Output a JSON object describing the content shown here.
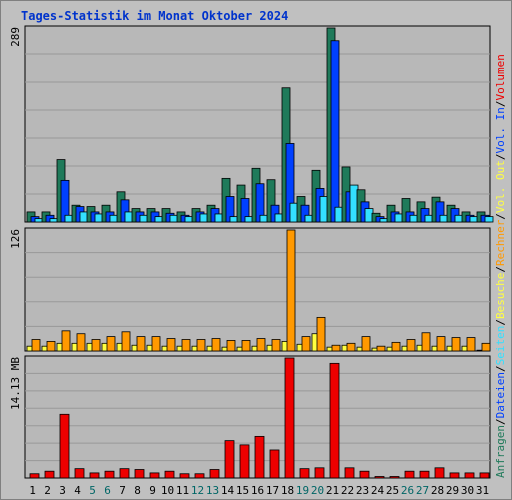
{
  "title": "Tages-Statistik im Monat Oktober 2024",
  "colors": {
    "background": "#c0c0c0",
    "plot_bg": "#b8b8b8",
    "grid": "#999999",
    "title": "#0033cc",
    "axis_text": "#000000",
    "weekend_day": "#006666",
    "anfragen": "#1f7a5a",
    "dateien": "#0040ff",
    "seiten": "#33e0ff",
    "besuche": "#ffff40",
    "rechner": "#ff9900",
    "volumen": "#ee0000"
  },
  "chart_data": [
    {
      "type": "bar",
      "panel": "requests",
      "ymax_label": "289",
      "ylim": [
        0,
        289
      ],
      "grid_lines": 7,
      "categories": [
        "1",
        "2",
        "3",
        "4",
        "5",
        "6",
        "7",
        "8",
        "9",
        "10",
        "11",
        "12",
        "13",
        "14",
        "15",
        "16",
        "17",
        "18",
        "19",
        "20",
        "21",
        "22",
        "23",
        "24",
        "25",
        "26",
        "27",
        "28",
        "29",
        "30",
        "31"
      ],
      "weekend_days": [
        "5",
        "6",
        "12",
        "13",
        "19",
        "20",
        "26",
        "27"
      ],
      "series": [
        {
          "name": "Anfragen",
          "color_key": "anfragen",
          "values": [
            15,
            15,
            93,
            25,
            23,
            25,
            45,
            20,
            20,
            20,
            15,
            20,
            25,
            65,
            55,
            80,
            63,
            200,
            38,
            77,
            289,
            82,
            48,
            13,
            25,
            35,
            30,
            37,
            25,
            15,
            15
          ]
        },
        {
          "name": "Dateien",
          "color_key": "dateien",
          "values": [
            8,
            10,
            62,
            23,
            15,
            15,
            33,
            15,
            15,
            13,
            10,
            15,
            20,
            38,
            35,
            57,
            25,
            117,
            25,
            50,
            270,
            45,
            30,
            8,
            15,
            15,
            20,
            30,
            20,
            10,
            10
          ]
        },
        {
          "name": "Seiten",
          "color_key": "seiten",
          "values": [
            5,
            5,
            10,
            15,
            12,
            10,
            15,
            10,
            8,
            10,
            8,
            12,
            12,
            8,
            8,
            10,
            12,
            28,
            10,
            38,
            22,
            55,
            20,
            5,
            12,
            10,
            10,
            10,
            10,
            8,
            8
          ]
        }
      ],
      "legend_labels": [
        "Anfragen",
        "Dateien",
        "Seiten"
      ]
    },
    {
      "type": "bar",
      "panel": "visits",
      "ymax_label": "126",
      "ylim": [
        0,
        126
      ],
      "grid_lines": 5,
      "categories": [
        "1",
        "2",
        "3",
        "4",
        "5",
        "6",
        "7",
        "8",
        "9",
        "10",
        "11",
        "12",
        "13",
        "14",
        "15",
        "16",
        "17",
        "18",
        "19",
        "20",
        "21",
        "22",
        "23",
        "24",
        "25",
        "26",
        "27",
        "28",
        "29",
        "30",
        "31"
      ],
      "series": [
        {
          "name": "Besuche",
          "color_key": "besuche",
          "values": [
            5,
            5,
            8,
            8,
            8,
            8,
            8,
            6,
            6,
            5,
            5,
            5,
            5,
            4,
            4,
            5,
            6,
            10,
            7,
            18,
            4,
            6,
            4,
            3,
            4,
            5,
            6,
            5,
            5,
            5,
            0
          ]
        },
        {
          "name": "Rechner",
          "color_key": "rechner",
          "values": [
            12,
            10,
            21,
            18,
            12,
            15,
            20,
            15,
            15,
            13,
            12,
            12,
            13,
            11,
            11,
            13,
            12,
            126,
            15,
            35,
            6,
            8,
            15,
            5,
            9,
            12,
            19,
            15,
            14,
            14,
            8
          ]
        }
      ],
      "legend_labels": [
        "Besuche",
        "Rechner"
      ]
    },
    {
      "type": "bar",
      "panel": "volume",
      "ymax_label": "14.13 MB",
      "ylim": [
        0,
        14.13
      ],
      "grid_lines": 7,
      "categories": [
        "1",
        "2",
        "3",
        "4",
        "5",
        "6",
        "7",
        "8",
        "9",
        "10",
        "11",
        "12",
        "13",
        "14",
        "15",
        "16",
        "17",
        "18",
        "19",
        "20",
        "21",
        "22",
        "23",
        "24",
        "25",
        "26",
        "27",
        "28",
        "29",
        "30",
        "31"
      ],
      "series": [
        {
          "name": "Volumen",
          "color_key": "volumen",
          "values": [
            0.5,
            0.8,
            7.5,
            1.1,
            0.6,
            0.8,
            1.1,
            1.0,
            0.6,
            0.8,
            0.5,
            0.5,
            1.0,
            4.4,
            3.9,
            4.9,
            3.3,
            14.13,
            1.1,
            1.2,
            13.5,
            1.2,
            0.8,
            0.1,
            0.1,
            0.8,
            0.8,
            1.2,
            0.6,
            0.6,
            0.6
          ]
        }
      ],
      "legend_labels": [
        "Volumen",
        "Vol. In",
        "Vol. Out"
      ]
    }
  ],
  "right_legend": [
    {
      "text": "Anfragen",
      "color_key": "anfragen"
    },
    {
      "text": "/",
      "color_key": "axis_text"
    },
    {
      "text": "Dateien",
      "color_key": "dateien"
    },
    {
      "text": "/",
      "color_key": "axis_text"
    },
    {
      "text": "Seiten",
      "color_key": "seiten"
    },
    {
      "text": "/",
      "color_key": "axis_text"
    },
    {
      "text": "Besuche",
      "color_key": "besuche"
    },
    {
      "text": "/",
      "color_key": "axis_text"
    },
    {
      "text": "Rechner",
      "color_key": "rechner"
    },
    {
      "text": "/",
      "color_key": "axis_text"
    },
    {
      "text": "Vol. Out",
      "color_key": "besuche"
    },
    {
      "text": "/",
      "color_key": "axis_text"
    },
    {
      "text": "Vol. In",
      "color_key": "dateien"
    },
    {
      "text": "/",
      "color_key": "axis_text"
    },
    {
      "text": "Volumen",
      "color_key": "volumen"
    }
  ]
}
